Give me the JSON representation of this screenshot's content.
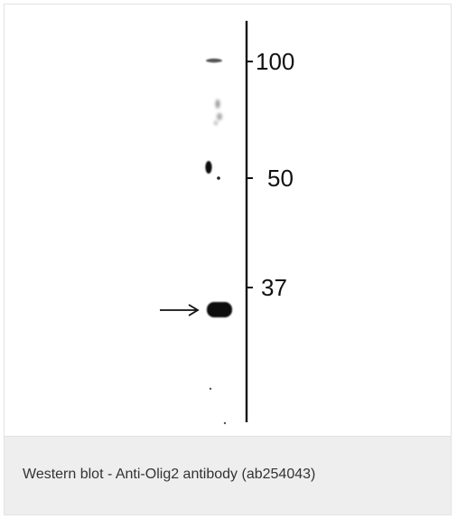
{
  "figure": {
    "markers": [
      {
        "label": "100"
      },
      {
        "label": "50"
      },
      {
        "label": "37"
      }
    ],
    "arrow_glyph": "→"
  },
  "caption": {
    "text": "Western blot - Anti-Olig2 antibody (ab254043)"
  },
  "colors": {
    "caption_background": "#eeeeee",
    "band": "#111111",
    "border": "#e2e2e2"
  },
  "icons": {
    "arrow": "arrow-right-icon"
  }
}
